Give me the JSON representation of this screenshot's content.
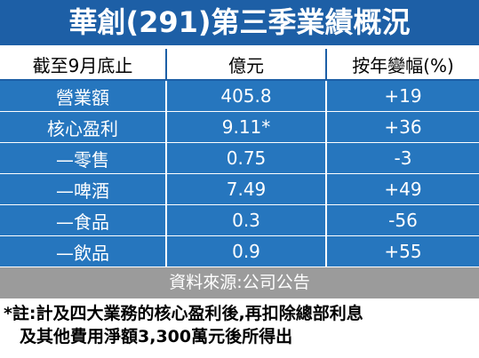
{
  "header": {
    "title": "華創(291)第三季業績概況"
  },
  "table": {
    "columns": [
      "截至9月底止",
      "億元",
      "按年變幅(%)"
    ],
    "rows": [
      [
        "營業額",
        "405.8",
        "+19"
      ],
      [
        "核心盈利",
        "9.11*",
        "+36"
      ],
      [
        "—零售",
        "0.75",
        "-3"
      ],
      [
        "—啤酒",
        "7.49",
        "+49"
      ],
      [
        "—食品",
        "0.3",
        "-56"
      ],
      [
        "—飲品",
        "0.9",
        "+55"
      ]
    ]
  },
  "source": "資料來源:公司公告",
  "footnote": [
    "*註:計及四大業務的核心盈利後,再扣除總部利息",
    "及其他費用淨額3,300萬元後所得出"
  ]
}
